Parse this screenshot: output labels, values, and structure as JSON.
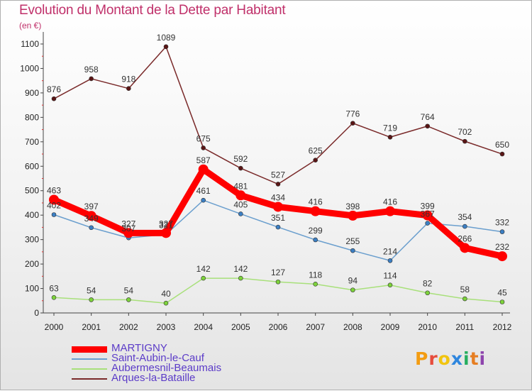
{
  "title": "Evolution du Montant de la Dette par Habitant",
  "subtitle": "(en €)",
  "logo": {
    "letters": [
      "P",
      "r",
      "o",
      "x",
      "i",
      "t",
      "i"
    ],
    "colors": [
      "#f39c12",
      "#e74c3c",
      "#f1c40f",
      "#2e86de",
      "#27ae60",
      "#e67e22",
      "#8e44ad"
    ]
  },
  "chart_data": {
    "type": "line",
    "x": [
      "2000",
      "2001",
      "2002",
      "2003",
      "2004",
      "2005",
      "2006",
      "2007",
      "2008",
      "2009",
      "2010",
      "2011",
      "2012"
    ],
    "ylim": [
      0,
      1100
    ],
    "yticks": [
      0,
      100,
      200,
      300,
      400,
      500,
      600,
      700,
      800,
      900,
      1000,
      1100
    ],
    "grid": false,
    "legend_position": "bottom-left",
    "series": [
      {
        "name": "MARTIGNY",
        "color": "#ff0000",
        "point_color": "#ff0000",
        "thick": true,
        "values": [
          463,
          397,
          327,
          327,
          587,
          481,
          434,
          416,
          398,
          416,
          399,
          266,
          232
        ]
      },
      {
        "name": "Saint-Aubin-le-Cauf",
        "color": "#6b9fce",
        "point_color": "#3b7fc4",
        "thick": false,
        "values": [
          402,
          349,
          307,
          321,
          461,
          405,
          351,
          299,
          255,
          214,
          367,
          354,
          332
        ]
      },
      {
        "name": "Aubermesnil-Beaumais",
        "color": "#a8e07a",
        "point_color": "#7cd23a",
        "thick": false,
        "values": [
          63,
          54,
          54,
          40,
          142,
          142,
          127,
          118,
          94,
          114,
          82,
          58,
          45
        ]
      },
      {
        "name": "Arques-la-Bataille",
        "color": "#7a2a2a",
        "point_color": "#5a1515",
        "thick": false,
        "values": [
          876,
          958,
          918,
          1089,
          675,
          592,
          527,
          625,
          776,
          719,
          764,
          702,
          650
        ]
      }
    ]
  }
}
